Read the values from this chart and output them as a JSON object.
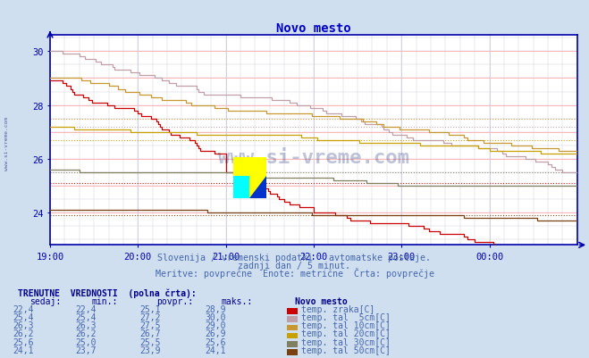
{
  "title": "Novo mesto",
  "subtitle1": "Slovenija / vremenski podatki - avtomatske postaje.",
  "subtitle2": "zadnji dan / 5 minut.",
  "subtitle3": "Meritve: povprečne  Enote: metrične  Črta: povprečje",
  "bg_color": "#d0dff0",
  "plot_bg_color": "#ffffff",
  "title_color": "#0000cc",
  "subtitle_color": "#4466aa",
  "axis_color": "#0000aa",
  "grid_color_pink": "#ffaaaa",
  "grid_color_gray": "#ccccdd",
  "xmin": 0,
  "xmax": 288,
  "ymin": 22.8,
  "ymax": 30.6,
  "yticks": [
    24,
    26,
    28,
    30
  ],
  "xtick_labels": [
    "19:00",
    "20:00",
    "21:00",
    "22:00",
    "23:00",
    "00:00"
  ],
  "xtick_positions": [
    0,
    48,
    96,
    144,
    192,
    240
  ],
  "series_colors": [
    "#cc0000",
    "#c0a0a8",
    "#c89830",
    "#c8a000",
    "#808060",
    "#7a4010"
  ],
  "series_avgs": [
    25.1,
    27.2,
    27.5,
    26.7,
    25.5,
    23.9
  ],
  "table_header_color": "#000088",
  "table_text_color": "#4466aa",
  "table_bold_color": "#000088",
  "watermark": "www.si-vreme.com",
  "watermark_color": "#1a2a7a",
  "left_label": "www.si-vreme.com",
  "row_data": [
    [
      "22,4",
      "22,4",
      "25,1",
      "28,9",
      "temp. zraka[C]",
      "#cc0000"
    ],
    [
      "25,4",
      "25,4",
      "27,2",
      "30,0",
      "temp. tal  5cm[C]",
      "#c0a0a8"
    ],
    [
      "26,3",
      "26,3",
      "27,5",
      "29,0",
      "temp. tal 10cm[C]",
      "#c89830"
    ],
    [
      "26,2",
      "26,2",
      "26,7",
      "26,9",
      "temp. tal 20cm[C]",
      "#c8a000"
    ],
    [
      "25,6",
      "25,0",
      "25,5",
      "25,6",
      "temp. tal 30cm[C]",
      "#808060"
    ],
    [
      "24,1",
      "23,7",
      "23,9",
      "24,1",
      "temp. tal 50cm[C]",
      "#7a4010"
    ]
  ]
}
